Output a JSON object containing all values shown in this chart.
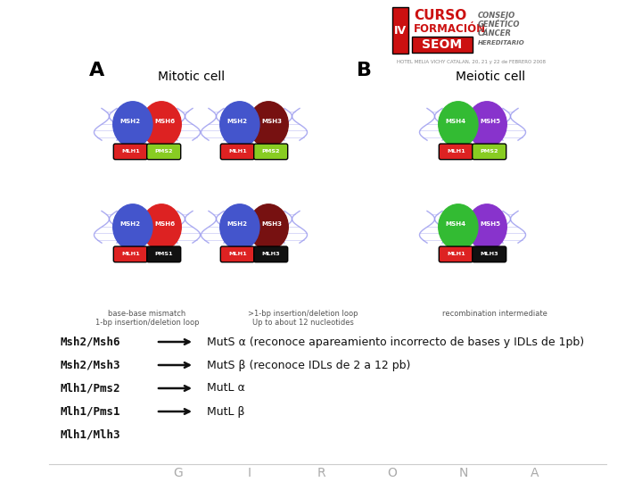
{
  "bg_color": "#ffffff",
  "hotel_text": "HOTEL MELIA VICHY CATALAN, 20, 21 y 22 de FEBRERO 2008",
  "label_A": "A",
  "label_B": "B",
  "mitotic_label": "Mitotic cell",
  "meiotic_label": "Meiotic cell",
  "legend_text1": "base-base mismatch\n1-bp insertion/deletion loop",
  "legend_text2": ">1-bp insertion/deletion loop\nUp to about 12 nucleotides",
  "legend_text3": "recombination intermediate",
  "rows": [
    {
      "left": "Msh2/Msh6",
      "arrow": true,
      "right": "MutS α (reconoce apareamiento incorrecto de bases y IDLs de 1pb)"
    },
    {
      "left": "Msh2/Msh3",
      "arrow": true,
      "right": "MutS β (reconoce IDLs de 2 a 12 pb)"
    },
    {
      "left": "Mlh1/Pms2",
      "arrow": true,
      "right": "MutL α"
    },
    {
      "left": "Mlh1/Pms1",
      "arrow": true,
      "right": "MutL β"
    },
    {
      "left": "Mlh1/Mlh3",
      "arrow": false,
      "right": ""
    }
  ],
  "footer_letters": [
    "G",
    "I",
    "R",
    "O",
    "N",
    "A"
  ],
  "footer_color": "#aaaaaa",
  "text_color": "#111111",
  "arrow_color": "#111111",
  "blue": "#4455cc",
  "red": "#dd2222",
  "darkred": "#771111",
  "pink": "#dd44aa",
  "green": "#33bb33",
  "purple": "#8833cc",
  "lime": "#88cc22",
  "black": "#111111",
  "navy": "#111133"
}
